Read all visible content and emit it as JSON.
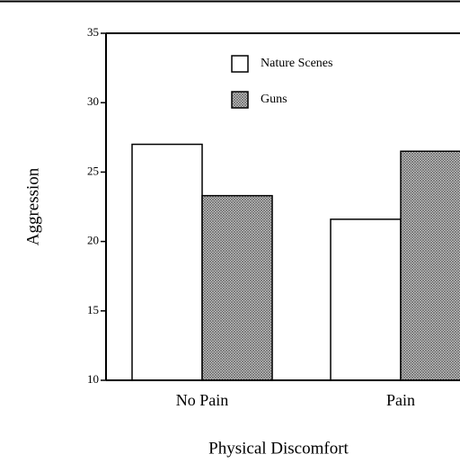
{
  "chart_data": {
    "type": "bar",
    "ylabel": "Aggression",
    "xlabel": "Physical Discomfort",
    "categories": [
      "No Pain",
      "Pain"
    ],
    "series": [
      {
        "name": "Nature Scenes",
        "color": "#ffffff",
        "values": [
          27,
          21.6
        ]
      },
      {
        "name": "Guns",
        "color": "#9a9a9a",
        "values": [
          23.3,
          26.5
        ]
      }
    ],
    "ylim": [
      10,
      35
    ],
    "yticks": [
      10,
      15,
      20,
      25,
      30,
      35
    ]
  }
}
